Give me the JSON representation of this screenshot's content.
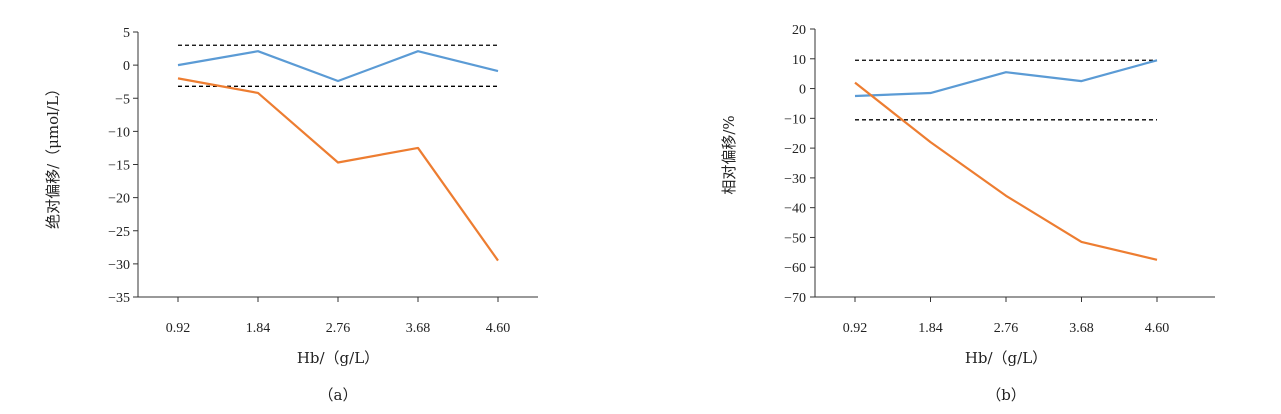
{
  "colors": {
    "series1": "#5B9BD5",
    "series2": "#ED7D31",
    "axis": "#333333",
    "limit": "#000000"
  },
  "chart_data": [
    {
      "type": "line",
      "panel_label": "（a）",
      "xlabel": "Hb/（g/L）",
      "ylabel": "绝对偏移/（μmol/L）",
      "x_ticks": [
        "0.92",
        "1.84",
        "2.76",
        "3.68",
        "4.60"
      ],
      "y_ticks": [
        "5",
        "0",
        "−5",
        "−10",
        "−15",
        "−20",
        "−25",
        "−30",
        "−35"
      ],
      "ylim": [
        -35,
        5
      ],
      "series": [
        {
          "color": "#5B9BD5",
          "values": [
            0,
            2.1,
            -2.4,
            2.1,
            -0.9
          ]
        },
        {
          "color": "#ED7D31",
          "values": [
            -2,
            -4.2,
            -14.7,
            -12.5,
            -29.5
          ]
        }
      ],
      "limits": [
        3,
        -3.2
      ]
    },
    {
      "type": "line",
      "panel_label": "（b）",
      "xlabel": "Hb/（g/L）",
      "ylabel": "相对偏移/%",
      "x_ticks": [
        "0.92",
        "1.84",
        "2.76",
        "3.68",
        "4.60"
      ],
      "y_ticks": [
        "20",
        "10",
        "0",
        "−10",
        "−20",
        "−30",
        "−40",
        "−50",
        "−60",
        "−70"
      ],
      "ylim": [
        -70,
        20
      ],
      "series": [
        {
          "color": "#5B9BD5",
          "values": [
            -2.5,
            -1.5,
            5.5,
            2.5,
            9.5
          ]
        },
        {
          "color": "#ED7D31",
          "values": [
            2,
            -18,
            -36,
            -51.5,
            -57.5
          ]
        }
      ],
      "limits": [
        9.5,
        -10.5
      ]
    }
  ]
}
